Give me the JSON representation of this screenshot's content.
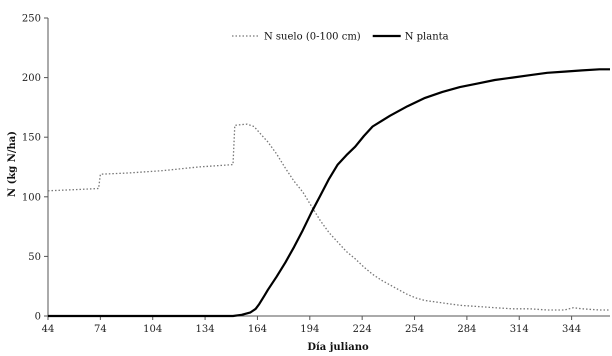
{
  "chart_data": {
    "type": "line",
    "title": "",
    "xlabel": "Día juliano",
    "ylabel": "N (kg N/ha)",
    "xlim": [
      44,
      366
    ],
    "ylim": [
      0,
      250
    ],
    "x_ticks": [
      44,
      74,
      104,
      134,
      164,
      194,
      224,
      254,
      284,
      314,
      344
    ],
    "y_ticks": [
      0,
      50,
      100,
      150,
      200,
      250
    ],
    "grid": false,
    "legend_position": "top-center",
    "series": [
      {
        "name": "N suelo (0-100 cm)",
        "style": "dotted",
        "color": "#777777",
        "points": [
          [
            44,
            105
          ],
          [
            60,
            106
          ],
          [
            73,
            107
          ],
          [
            74,
            119
          ],
          [
            90,
            120
          ],
          [
            110,
            122
          ],
          [
            130,
            125
          ],
          [
            150,
            127
          ],
          [
            151,
            160
          ],
          [
            158,
            161
          ],
          [
            162,
            159
          ],
          [
            165,
            154
          ],
          [
            170,
            146
          ],
          [
            175,
            136
          ],
          [
            180,
            124
          ],
          [
            185,
            113
          ],
          [
            190,
            104
          ],
          [
            195,
            92
          ],
          [
            200,
            80
          ],
          [
            205,
            70
          ],
          [
            210,
            62
          ],
          [
            215,
            54
          ],
          [
            220,
            48
          ],
          [
            225,
            41
          ],
          [
            230,
            35
          ],
          [
            235,
            30
          ],
          [
            240,
            26
          ],
          [
            245,
            22
          ],
          [
            250,
            18
          ],
          [
            255,
            15
          ],
          [
            260,
            13
          ],
          [
            270,
            11
          ],
          [
            280,
            9
          ],
          [
            290,
            8
          ],
          [
            300,
            7
          ],
          [
            310,
            6
          ],
          [
            320,
            6
          ],
          [
            330,
            5
          ],
          [
            340,
            5
          ],
          [
            345,
            7
          ],
          [
            350,
            6
          ],
          [
            360,
            5
          ],
          [
            366,
            5
          ]
        ]
      },
      {
        "name": "N planta",
        "style": "solid",
        "color": "#000000",
        "points": [
          [
            44,
            0
          ],
          [
            100,
            0
          ],
          [
            140,
            0
          ],
          [
            150,
            0
          ],
          [
            155,
            1
          ],
          [
            160,
            3
          ],
          [
            163,
            6
          ],
          [
            165,
            10
          ],
          [
            168,
            17
          ],
          [
            170,
            22
          ],
          [
            175,
            33
          ],
          [
            180,
            45
          ],
          [
            185,
            58
          ],
          [
            190,
            72
          ],
          [
            195,
            87
          ],
          [
            200,
            101
          ],
          [
            205,
            115
          ],
          [
            210,
            127
          ],
          [
            215,
            135
          ],
          [
            220,
            142
          ],
          [
            225,
            151
          ],
          [
            230,
            159
          ],
          [
            240,
            168
          ],
          [
            250,
            176
          ],
          [
            260,
            183
          ],
          [
            270,
            188
          ],
          [
            280,
            192
          ],
          [
            290,
            195
          ],
          [
            300,
            198
          ],
          [
            310,
            200
          ],
          [
            320,
            202
          ],
          [
            330,
            204
          ],
          [
            340,
            205
          ],
          [
            350,
            206
          ],
          [
            360,
            207
          ],
          [
            366,
            207
          ]
        ]
      }
    ]
  }
}
